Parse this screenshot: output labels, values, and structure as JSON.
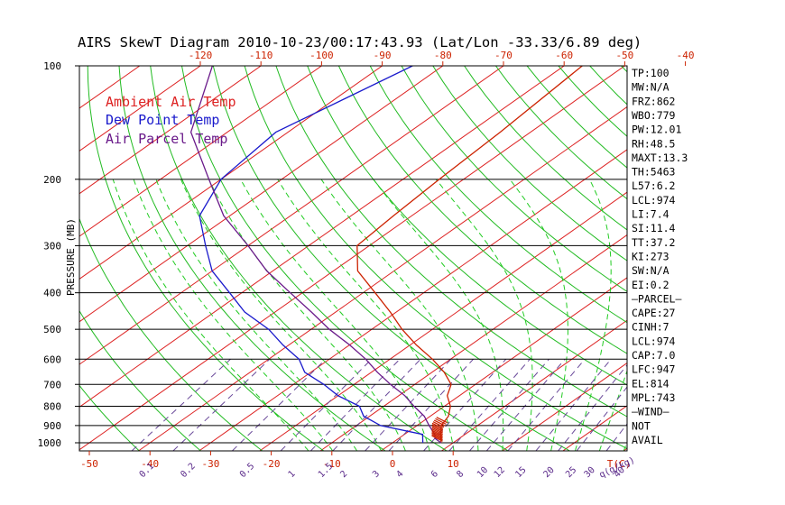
{
  "chart_data": {
    "type": "line",
    "title": "AIRS SkewT Diagram 2010-10-23/00:17:43.93 (Lat/Lon -33.33/6.89 deg)",
    "ylabel": "PRESSURE (MB)",
    "y_scale": "log",
    "ylim": [
      1050,
      100
    ],
    "pressure_ticks": [
      100,
      200,
      300,
      400,
      500,
      600,
      700,
      800,
      900,
      1000
    ],
    "top_temp_ticks": [
      "-120",
      "-110",
      "-100",
      "-90",
      "-80",
      "-70",
      "-60",
      "-50",
      "-40"
    ],
    "bottom_temp_ticks": [
      "-50",
      "-40",
      "-30",
      "-20",
      "-10",
      "0",
      "10"
    ],
    "bottom_temp_unit": "T(C)",
    "mixing_ratio_labels": [
      "0.1",
      "0.2",
      "0.5",
      "1",
      "1.5",
      "2",
      "3",
      "4",
      "6",
      "8",
      "10",
      "12",
      "15",
      "20",
      "25",
      "30",
      "40"
    ],
    "mixing_ratio_unit": "q(g/kg)",
    "legend": [
      {
        "label": "Ambient Air Temp",
        "color": "#dd2222"
      },
      {
        "label": "Dew Point Temp",
        "color": "#1a1acc"
      },
      {
        "label": "Air Parcel Temp",
        "color": "#6a1a8a"
      }
    ],
    "series": [
      {
        "name": "Ambient Air Temp",
        "color": "#cc2200",
        "points": [
          [
            1000,
            8
          ],
          [
            950,
            6
          ],
          [
            900,
            4
          ],
          [
            850,
            3
          ],
          [
            800,
            1
          ],
          [
            750,
            -2
          ],
          [
            700,
            -4
          ],
          [
            650,
            -8
          ],
          [
            600,
            -13
          ],
          [
            550,
            -19
          ],
          [
            500,
            -25
          ],
          [
            450,
            -31
          ],
          [
            400,
            -38
          ],
          [
            350,
            -46
          ],
          [
            300,
            -52
          ],
          [
            250,
            -53
          ],
          [
            200,
            -54
          ],
          [
            150,
            -55
          ],
          [
            100,
            -57
          ]
        ]
      },
      {
        "name": "Dew Point Temp",
        "color": "#1a1acc",
        "points": [
          [
            1000,
            5
          ],
          [
            950,
            3
          ],
          [
            900,
            -6
          ],
          [
            850,
            -11
          ],
          [
            800,
            -14
          ],
          [
            750,
            -20
          ],
          [
            700,
            -25
          ],
          [
            650,
            -31
          ],
          [
            600,
            -35
          ],
          [
            550,
            -41
          ],
          [
            500,
            -47
          ],
          [
            450,
            -55
          ],
          [
            400,
            -62
          ],
          [
            350,
            -70
          ],
          [
            300,
            -77
          ],
          [
            250,
            -85
          ],
          [
            200,
            -90
          ],
          [
            150,
            -92
          ],
          [
            100,
            -85
          ]
        ]
      },
      {
        "name": "Air Parcel Temp",
        "color": "#6a1a8a",
        "points": [
          [
            1000,
            8
          ],
          [
            974,
            6
          ],
          [
            950,
            5
          ],
          [
            900,
            2
          ],
          [
            850,
            -1
          ],
          [
            800,
            -5
          ],
          [
            750,
            -9
          ],
          [
            700,
            -14
          ],
          [
            650,
            -19
          ],
          [
            600,
            -24
          ],
          [
            550,
            -30
          ],
          [
            500,
            -37
          ],
          [
            450,
            -44
          ],
          [
            400,
            -52
          ],
          [
            350,
            -61
          ],
          [
            300,
            -70
          ],
          [
            250,
            -81
          ],
          [
            200,
            -92
          ],
          [
            150,
            -106
          ],
          [
            100,
            -118
          ]
        ]
      }
    ],
    "wind_barb": {
      "pressure_range": [
        870,
        980
      ],
      "color": "#cc2200"
    },
    "indices": [
      "TP:100",
      "MW:N/A",
      "FRZ:862",
      "WBO:779",
      "PW:12.01",
      "RH:48.5",
      "MAXT:13.3",
      "TH:5463",
      "L57:6.2",
      "LCL:974",
      "LI:7.4",
      "SI:11.4",
      "TT:37.2",
      "KI:273",
      "SW:N/A",
      "EI:0.2",
      "—PARCEL—",
      "CAPE:27",
      "CINH:7",
      "LCL:974",
      "CAP:7.0",
      "LFC:947",
      "EL:814",
      "MPL:743",
      "—WIND—",
      "NOT",
      "AVAIL"
    ],
    "grid": true
  },
  "colors": {
    "axis": "#000000",
    "isotherm": "#dd2222",
    "dry_adiabat": "#22bb22",
    "moist_adiabat": "#22cc22",
    "mixing_ratio": "#6a4a9a",
    "isobar": "#000000",
    "label_red": "#cc2200",
    "label_purple": "#5a2a8a"
  }
}
